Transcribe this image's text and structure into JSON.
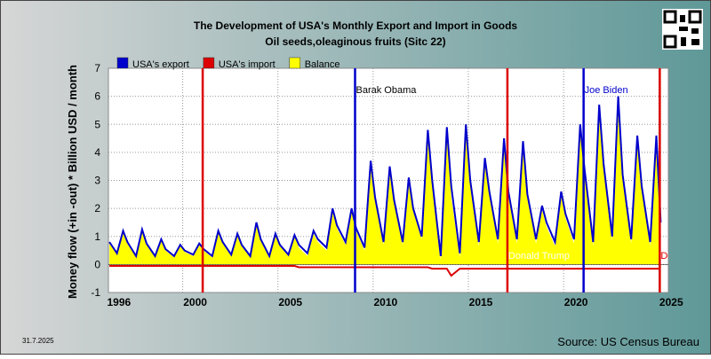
{
  "chart_data": {
    "type": "line",
    "title": "The Development of USA's Monthly Export and Import in Goods",
    "subtitle": "Oil seeds,oleaginous fruits (Sitc 22)",
    "y_label": "Money flow (+in -out) * Billion USD / month",
    "date": "31.7.2025",
    "source": "Source: US Census Bureau",
    "xlim": [
      1996.1,
      2025.5
    ],
    "xticks": [
      1996,
      2000,
      2005,
      2010,
      2015,
      2020,
      2025
    ],
    "ylim": [
      -1,
      7
    ],
    "yticks": [
      -1,
      0,
      1,
      2,
      3,
      4,
      5,
      6,
      7
    ],
    "grid": true,
    "x": [
      1996.15,
      1996.55,
      1996.87,
      1997.1,
      1997.55,
      1997.87,
      1998.1,
      1998.55,
      1998.87,
      1999.1,
      1999.55,
      1999.87,
      2000.1,
      2000.55,
      2000.87,
      2001.1,
      2001.55,
      2001.87,
      2002.1,
      2002.55,
      2002.87,
      2003.1,
      2003.55,
      2003.87,
      2004.1,
      2004.55,
      2004.87,
      2005.1,
      2005.55,
      2005.87,
      2006.1,
      2006.55,
      2006.87,
      2007.1,
      2007.55,
      2007.87,
      2008.1,
      2008.55,
      2008.87,
      2009.1,
      2009.55,
      2009.87,
      2010.1,
      2010.55,
      2010.87,
      2011.1,
      2011.55,
      2011.87,
      2012.1,
      2012.55,
      2012.87,
      2013.1,
      2013.55,
      2013.87,
      2014.1,
      2014.55,
      2014.87,
      2015.1,
      2015.55,
      2015.87,
      2016.1,
      2016.55,
      2016.87,
      2017.1,
      2017.55,
      2017.87,
      2018.1,
      2018.55,
      2018.87,
      2019.1,
      2019.55,
      2019.87,
      2020.1,
      2020.55,
      2020.87,
      2021.1,
      2021.55,
      2021.87,
      2022.1,
      2022.55,
      2022.87,
      2023.1,
      2023.55,
      2023.87,
      2024.1,
      2024.55,
      2024.87,
      2025.1
    ],
    "series": [
      {
        "name": "USA's export",
        "color": "#0000cc",
        "values": [
          0.8,
          0.4,
          1.2,
          0.8,
          0.3,
          1.25,
          0.75,
          0.3,
          0.9,
          0.55,
          0.3,
          0.7,
          0.5,
          0.35,
          0.75,
          0.55,
          0.3,
          1.2,
          0.8,
          0.35,
          1.1,
          0.7,
          0.3,
          1.5,
          0.9,
          0.3,
          1.1,
          0.7,
          0.35,
          1.05,
          0.7,
          0.4,
          1.2,
          0.9,
          0.6,
          2.0,
          1.4,
          0.8,
          2.0,
          1.3,
          0.6,
          3.7,
          2.4,
          0.8,
          3.5,
          2.3,
          0.8,
          3.1,
          2.0,
          1.0,
          4.8,
          3.0,
          0.3,
          4.9,
          2.8,
          0.4,
          5.0,
          3.0,
          0.8,
          3.8,
          2.6,
          0.9,
          4.5,
          2.6,
          0.9,
          4.4,
          2.5,
          0.9,
          2.1,
          1.5,
          0.8,
          2.6,
          1.8,
          0.9,
          5.0,
          3.4,
          0.8,
          5.7,
          3.6,
          1.0,
          6.0,
          3.2,
          0.9,
          4.6,
          2.8,
          0.8,
          4.6,
          1.5
        ]
      },
      {
        "name": "USA's import",
        "color": "#dd0000",
        "values": [
          -0.05,
          -0.05,
          -0.05,
          -0.05,
          -0.05,
          -0.05,
          -0.05,
          -0.05,
          -0.05,
          -0.05,
          -0.05,
          -0.05,
          -0.05,
          -0.05,
          -0.05,
          -0.05,
          -0.05,
          -0.05,
          -0.05,
          -0.05,
          -0.05,
          -0.05,
          -0.05,
          -0.05,
          -0.05,
          -0.05,
          -0.05,
          -0.05,
          -0.05,
          -0.05,
          -0.1,
          -0.1,
          -0.1,
          -0.1,
          -0.1,
          -0.1,
          -0.1,
          -0.1,
          -0.1,
          -0.1,
          -0.1,
          -0.1,
          -0.1,
          -0.1,
          -0.1,
          -0.1,
          -0.1,
          -0.1,
          -0.1,
          -0.1,
          -0.1,
          -0.15,
          -0.15,
          -0.15,
          -0.4,
          -0.15,
          -0.15,
          -0.15,
          -0.15,
          -0.15,
          -0.15,
          -0.15,
          -0.15,
          -0.15,
          -0.15,
          -0.15,
          -0.15,
          -0.15,
          -0.15,
          -0.15,
          -0.15,
          -0.15,
          -0.15,
          -0.15,
          -0.15,
          -0.15,
          -0.15,
          -0.15,
          -0.15,
          -0.15,
          -0.15,
          -0.15,
          -0.15,
          -0.15,
          -0.15,
          -0.15,
          -0.15,
          -0.15
        ]
      },
      {
        "name": "Balance",
        "color": "#ffff00",
        "values": [
          0.75,
          0.35,
          1.15,
          0.75,
          0.25,
          1.2,
          0.7,
          0.25,
          0.85,
          0.5,
          0.25,
          0.65,
          0.45,
          0.3,
          0.7,
          0.5,
          0.25,
          1.15,
          0.75,
          0.3,
          1.05,
          0.65,
          0.25,
          1.45,
          0.85,
          0.25,
          1.05,
          0.65,
          0.3,
          1.0,
          0.6,
          0.3,
          1.1,
          0.8,
          0.5,
          1.9,
          1.3,
          0.7,
          1.9,
          1.2,
          0.5,
          3.6,
          2.3,
          0.7,
          3.4,
          2.2,
          0.7,
          3.0,
          1.9,
          0.9,
          4.7,
          2.85,
          0.15,
          4.75,
          2.4,
          0.25,
          4.85,
          2.85,
          0.65,
          3.65,
          2.45,
          0.75,
          4.35,
          2.45,
          0.75,
          4.25,
          2.35,
          0.75,
          1.95,
          1.35,
          0.65,
          2.45,
          1.65,
          0.75,
          4.85,
          3.25,
          0.65,
          5.55,
          3.45,
          0.85,
          5.85,
          3.05,
          0.75,
          4.45,
          2.65,
          0.65,
          4.45,
          1.35
        ]
      }
    ],
    "annotations": [
      {
        "x": 2001.05,
        "color": "#dd0000"
      },
      {
        "x": 2009.05,
        "color": "#0000cc",
        "label": "Barak Obama",
        "label_color": "#000000"
      },
      {
        "x": 2017.05,
        "color": "#dd0000",
        "label": "Donald Trump",
        "label_color": "#ffffff"
      },
      {
        "x": 2021.05,
        "color": "#0000cc",
        "label": "Joe Biden",
        "label_color": "#0000cc"
      },
      {
        "x": 2025.05,
        "color": "#dd0000",
        "label": "Donald Trump",
        "label_color": "#dd0000"
      }
    ]
  }
}
